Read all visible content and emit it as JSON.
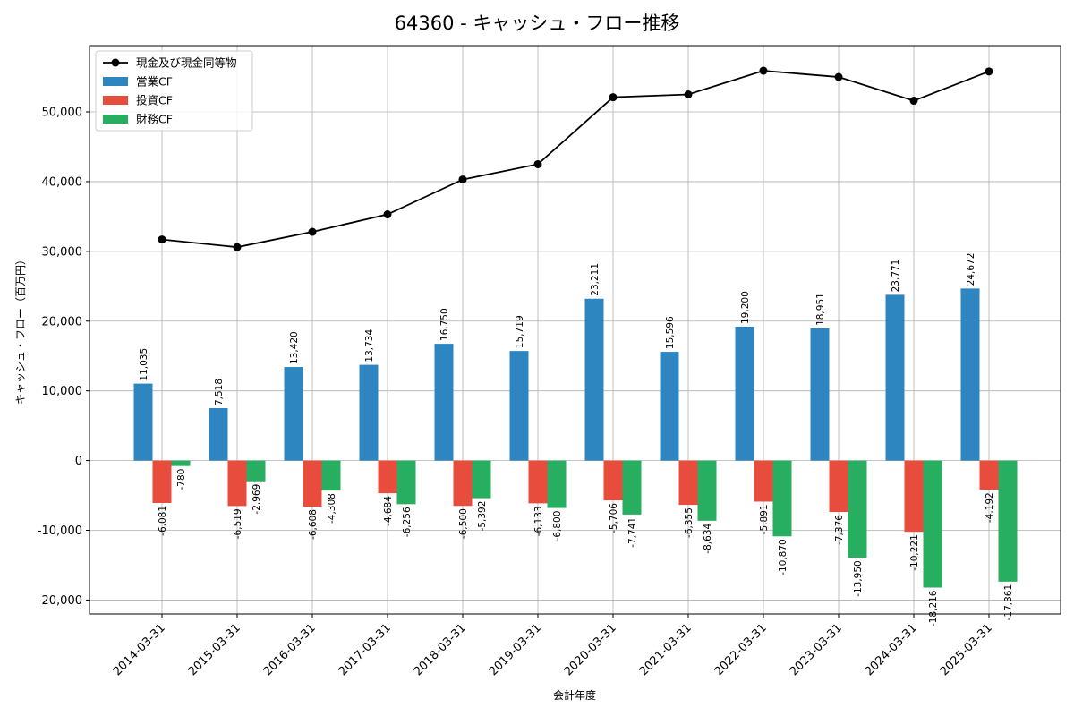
{
  "chart_data": {
    "type": "bar",
    "title": "64360 - キャッシュ・フロー推移",
    "xlabel": "会計年度",
    "ylabel": "キャッシュ・フロー（百万円）",
    "categories": [
      "2014-03-31",
      "2015-03-31",
      "2016-03-31",
      "2017-03-31",
      "2018-03-31",
      "2019-03-31",
      "2020-03-31",
      "2021-03-31",
      "2022-03-31",
      "2023-03-31",
      "2024-03-31",
      "2025-03-31"
    ],
    "ylim": [
      -22000,
      59500
    ],
    "yticks": [
      -20000,
      -10000,
      0,
      10000,
      20000,
      30000,
      40000,
      50000
    ],
    "ytick_labels": [
      "-20,000",
      "-10,000",
      "0",
      "10,000",
      "20,000",
      "30,000",
      "40,000",
      "50,000"
    ],
    "grid": true,
    "legend_position": "top-left",
    "series": [
      {
        "name": "営業CF",
        "kind": "bar",
        "color": "#2e86c1",
        "values": [
          11035,
          7518,
          13420,
          13734,
          16750,
          15719,
          23211,
          15596,
          19200,
          18951,
          23771,
          24672
        ],
        "labels": [
          "11,035",
          "7,518",
          "13,420",
          "13,734",
          "16,750",
          "15,719",
          "23,211",
          "15,596",
          "19,200",
          "18,951",
          "23,771",
          "24,672"
        ]
      },
      {
        "name": "投資CF",
        "kind": "bar",
        "color": "#e74c3c",
        "values": [
          -6081,
          -6519,
          -6608,
          -4684,
          -6500,
          -6133,
          -5706,
          -6355,
          -5891,
          -7376,
          -10221,
          -4192
        ],
        "labels": [
          "-6,081",
          "-6,519",
          "-6,608",
          "-4,684",
          "-6,500",
          "-6,133",
          "-5,706",
          "-6,355",
          "-5,891",
          "-7,376",
          "-10,221",
          "-4,192"
        ]
      },
      {
        "name": "財務CF",
        "kind": "bar",
        "color": "#27ae60",
        "values": [
          -780,
          -2969,
          -4308,
          -6256,
          -5392,
          -6800,
          -7741,
          -8634,
          -10870,
          -13950,
          -18216,
          -17361
        ],
        "labels": [
          "-780",
          "-2,969",
          "-4,308",
          "-6,256",
          "-5,392",
          "-6,800",
          "-7,741",
          "-8,634",
          "-10,870",
          "-13,950",
          "-18,216",
          "-17,361"
        ]
      },
      {
        "name": "現金及び現金同等物",
        "kind": "line",
        "color": "#000000",
        "values": [
          31700,
          30600,
          32800,
          35300,
          40300,
          42500,
          52100,
          52500,
          55900,
          55000,
          51600,
          55800
        ]
      }
    ]
  }
}
